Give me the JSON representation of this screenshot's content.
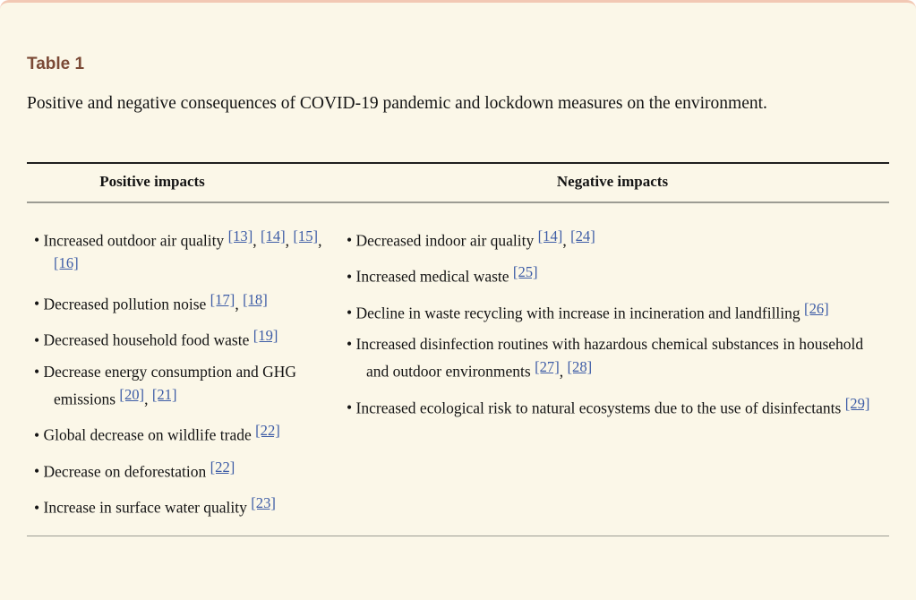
{
  "page": {
    "table_label": "Table 1",
    "caption": "Positive and negative consequences of COVID-19 pandemic and lockdown measures on the environment."
  },
  "table": {
    "columns": [
      {
        "header": "Positive impacts",
        "items": [
          {
            "segments": [
              {
                "text": "Increased outdoor air quality "
              },
              {
                "cite": "[13]"
              },
              {
                "text": ", "
              },
              {
                "cite": "[14]"
              },
              {
                "text": ", "
              },
              {
                "cite": "[15]"
              },
              {
                "text": ", "
              },
              {
                "cite": "[16]"
              }
            ]
          },
          {
            "segments": [
              {
                "text": "Decreased pollution noise "
              },
              {
                "cite": "[17]"
              },
              {
                "text": ", "
              },
              {
                "cite": "[18]"
              }
            ]
          },
          {
            "segments": [
              {
                "text": "Decreased household food waste "
              },
              {
                "cite": "[19]"
              }
            ]
          },
          {
            "segments": [
              {
                "text": "Decrease energy consumption and GHG emissions "
              },
              {
                "cite": "[20]"
              },
              {
                "text": ", "
              },
              {
                "cite": "[21]"
              }
            ]
          },
          {
            "segments": [
              {
                "text": "Global decrease on wildlife trade "
              },
              {
                "cite": "[22]"
              }
            ]
          },
          {
            "segments": [
              {
                "text": "Decrease on deforestation "
              },
              {
                "cite": "[22]"
              }
            ]
          },
          {
            "segments": [
              {
                "text": "Increase in surface water quality "
              },
              {
                "cite": "[23]"
              }
            ]
          }
        ]
      },
      {
        "header": "Negative impacts",
        "items": [
          {
            "segments": [
              {
                "text": "Decreased indoor air quality "
              },
              {
                "cite": "[14]"
              },
              {
                "text": ", "
              },
              {
                "cite": "[24]"
              }
            ]
          },
          {
            "segments": [
              {
                "text": "Increased medical waste "
              },
              {
                "cite": "[25]"
              }
            ]
          },
          {
            "segments": [
              {
                "text": "Decline in waste recycling with increase in incineration and landfilling "
              },
              {
                "cite": "[26]"
              }
            ]
          },
          {
            "segments": [
              {
                "text": "Increased disinfection routines with hazardous chemical substances in household and outdoor environments "
              },
              {
                "cite": "[27]"
              },
              {
                "text": ", "
              },
              {
                "cite": "[28]"
              }
            ]
          },
          {
            "segments": [
              {
                "text": "Increased ecological risk to natural ecosystems due to the use of disinfectants "
              },
              {
                "cite": "[29]"
              }
            ]
          }
        ]
      }
    ]
  },
  "colors": {
    "background_cream": "#fbf7e8",
    "top_border_pink": "#f2c8b4",
    "label_brown": "#7b4a36",
    "citation_blue": "#3d5ca6",
    "rule_dark": "#1f1f1f",
    "rule_gray": "#9c9c93"
  }
}
